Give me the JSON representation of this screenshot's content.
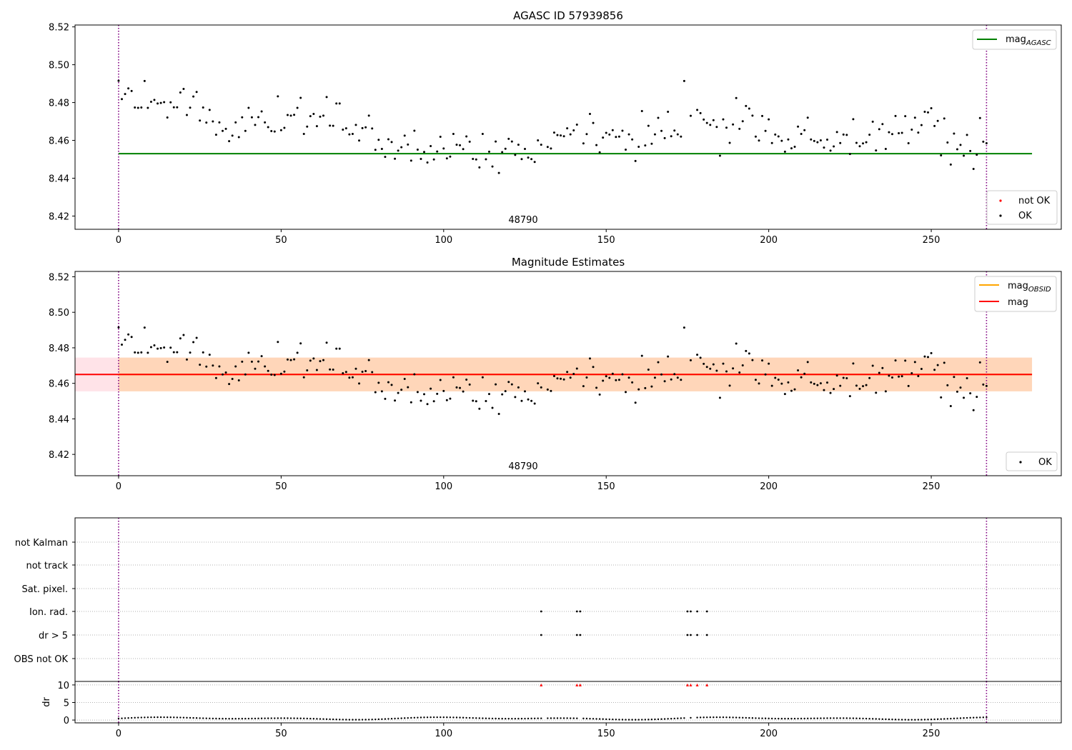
{
  "chart_data": [
    {
      "type": "scatter",
      "title": "AGASC ID 57939856",
      "obsid_label": "48790",
      "xlim": [
        -13.4,
        290
      ],
      "ylim": [
        8.413,
        8.521
      ],
      "xticks": [
        "0",
        "50",
        "100",
        "150",
        "200",
        "250",
        "300"
      ],
      "yticks": [
        "8.42",
        "8.44",
        "8.46",
        "8.48",
        "8.50",
        "8.52"
      ],
      "vlines": [
        0,
        267
      ],
      "lines": [
        {
          "name": "mag_AGASC",
          "y": 8.453,
          "x": [
            0,
            281
          ],
          "color": "#008000"
        }
      ],
      "legend_lines": {
        "base": "mag",
        "sub": "AGASC"
      },
      "legend_markers": [
        "not OK",
        "OK"
      ],
      "series": [
        {
          "name": "OK",
          "color": "#000000",
          "points": "0,8.4915;1,8.4818;2,8.4845;3,8.4875;4,8.4861;5,8.4774;6,8.4772;7,8.4774;8,8.4914;9,8.4772;10,8.4804;11,8.4814;12,8.4795;13,8.4798;14,8.4802;15,8.4721;16,8.4801;17,8.4775;18,8.4775;19,8.4853;20,8.4872;21,8.4734;22,8.4773;23,8.4832;24,8.4856;25,8.4705;26,8.4774;27,8.4694;28,8.4761;29,8.4700;30,8.4630;31,8.4695;32,8.4650;33,8.4661;34,8.4596;35,8.4625;36,8.4695;37,8.4617;38,8.4722;39,8.4650;40,8.4772;41,8.4722;42,8.4682;43,8.4723;44,8.4753;45,8.4695;46,8.4670;47,8.4649;48,8.4647;49,8.4833;50,8.4654;51,8.4666;52,8.4734;53,8.4731;54,8.4735;55,8.4772;56,8.4825;57,8.4634;58,8.4673;59,8.4728;60,8.4740;61,8.4675;62,8.4725;63,8.4731;64,8.4829;65,8.4678;66,8.4677;67,8.4795;68,8.4795;69,8.4657;70,8.4664;71,8.4632;72,8.4634;73,8.4682;74,8.4599;75,8.4665;76,8.4669;77,8.4731;78,8.4663;79,8.4550;80,8.4603;81,8.4555;82,8.4513;83,8.4606;84,8.4591;85,8.4503;86,8.4546;87,8.4564;88,8.4625;89,8.4578;90,8.4493;91,8.4651;92,8.4551;93,8.4502;94,8.4539;95,8.4483;96,8.4570;97,8.4499;98,8.4541;99,8.4619;100,8.4557;101,8.4505;102,8.4514;103,8.4634;104,8.4577;105,8.4574;106,8.4554;107,8.4621;108,8.4593;109,8.4502;110,8.4499;111,8.4457;112,8.4634;113,8.4500;114,8.4540;115,8.4462;116,8.4594;117,8.4428;118,8.4538;119,8.4556;120,8.4608;121,8.4594;122,8.4523;123,8.4577;124,8.4501;125,8.4555;126,8.4509;127,8.4501;128,8.4486;129,8.4600;130,8.4577;132,8.4565;133,8.4557;134,8.4641;135,8.4628;136,8.4626;137,8.4622;138,8.4664;139,8.4632;140,8.4653;141,8.4683;143,8.4584;144,8.4633;145,8.4740;146,8.4692;147,8.4575;148,8.4537;149,8.4615;150,8.4640;151,8.4631;152,8.4654;153,8.4618;154,8.4620;155,8.4651;156,8.4551;157,8.4632;158,8.4605;159,8.4491;160,8.4566;161,8.4755;162,8.4573;163,8.4677;164,8.4582;165,8.4632;166,8.4719;167,8.4650;168,8.4612;169,8.4751;170,8.4622;171,8.4652;172,8.4632;173,8.4620;174,8.4914;176,8.4730;178,8.4761;179,8.4744;180,8.4710;181,8.4692;182,8.4682;183,8.4707;184,8.4671;185,8.4519;186,8.4711;187,8.4667;188,8.4587;189,8.4684;190,8.4824;191,8.4661;192,8.4701;193,8.4782;194,8.4768;195,8.4731;196,8.4620;197,8.4599;198,8.4729;199,8.4650;200,8.4711;201,8.4586;202,8.4631;203,8.4621;204,8.4598;205,8.4540;206,8.4605;207,8.4558;208,8.4566;209,8.4673;210,8.4634;211,8.4654;212,8.4720;213,8.4605;214,8.4597;215,8.4590;216,8.4600;217,8.4562;218,8.4604;219,8.4546;220,8.4568;221,8.4644;222,8.4586;223,8.4631;224,8.4629;225,8.4528;226,8.4712;227,8.4587;228,8.4569;229,8.4584;230,8.4590;231,8.4630;232,8.4699;233,8.4547;234,8.4659;235,8.4686;236,8.4555;237,8.4643;238,8.4633;239,8.4729;240,8.4638;241,8.4640;242,8.4728;243,8.4585;244,8.4657;245,8.4720;246,8.4641;247,8.4681;248,8.4751;249,8.4748;250,8.4770;251,8.4676;252,8.4703;253,8.4521;254,8.4716;255,8.4589;256,8.4472;257,8.4636;258,8.4553;259,8.4576;260,8.4519;261,8.4629;262,8.4544;263,8.4449;264,8.4524;265,8.4718;266,8.4593;267,8.4585"
        },
        {
          "name": "not OK",
          "color": "#ff0000",
          "points": ""
        }
      ]
    },
    {
      "type": "scatter",
      "title": "Magnitude Estimates",
      "obsid_label": "48790",
      "xlim": [
        -13.4,
        290
      ],
      "ylim": [
        8.408,
        8.523
      ],
      "xticks": [
        "0",
        "50",
        "100",
        "150",
        "200",
        "250",
        "300"
      ],
      "yticks": [
        "8.42",
        "8.44",
        "8.46",
        "8.48",
        "8.50",
        "8.52"
      ],
      "vlines": [
        0,
        267
      ],
      "bands": [
        {
          "x": [
            -13.4,
            281
          ],
          "y": [
            8.4555,
            8.4745
          ],
          "color": "#ffc0cb",
          "opacity": 0.45
        },
        {
          "x": [
            0,
            281
          ],
          "y": [
            8.4555,
            8.4745
          ],
          "color": "#ffa500",
          "opacity": 0.2
        }
      ],
      "lines": [
        {
          "name": "mag_OBSID",
          "y": 8.465,
          "x": [
            0,
            281
          ],
          "color": "#ffa500"
        },
        {
          "name": "mag",
          "y": 8.465,
          "x": [
            -13.4,
            281
          ],
          "color": "#ff0000"
        }
      ],
      "legend_lines": {
        "obsid_base": "mag",
        "obsid_sub": "OBSID",
        "mag": "mag"
      },
      "legend_markers": [
        "OK"
      ],
      "series": [
        {
          "name": "OK",
          "color": "#000000",
          "points": "same-as-panel-1"
        }
      ]
    },
    {
      "type": "scatter",
      "title": "",
      "xlim": [
        -13.4,
        290
      ],
      "xticks": [
        "0",
        "50",
        "100",
        "150",
        "200",
        "250",
        "300"
      ],
      "vlines": [
        0,
        267
      ],
      "categories": [
        "not Kalman",
        "not track",
        "Sat. pixel.",
        "Ion. rad.",
        "dr > 5",
        "OBS not OK"
      ],
      "flags": {
        "Ion. rad.": [
          130,
          141,
          142,
          175,
          176,
          178,
          181
        ],
        "dr > 5": [
          130,
          141,
          142,
          175,
          176,
          178,
          181
        ]
      }
    },
    {
      "type": "scatter",
      "title": "",
      "ylabel": "dr",
      "xlim": [
        -13.4,
        290
      ],
      "ylim": [
        -0.8,
        11
      ],
      "xticks": [
        "0",
        "50",
        "100",
        "150",
        "200",
        "250",
        "300"
      ],
      "yticks": [
        "0",
        "5",
        "10"
      ],
      "vlines": [
        0,
        267
      ],
      "clipped_at": 10,
      "clipped_x": [
        130,
        141,
        142,
        175,
        176,
        178,
        181
      ],
      "dr_range": [
        0.0,
        0.9
      ]
    }
  ]
}
